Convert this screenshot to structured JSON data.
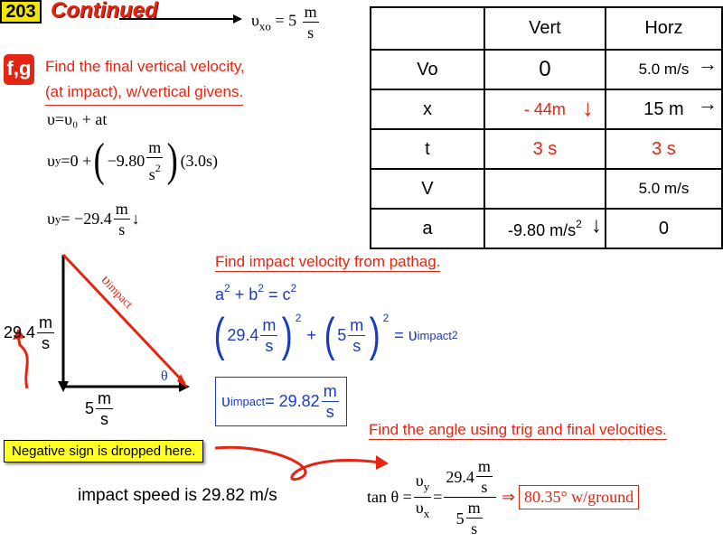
{
  "header": {
    "slide_number": "203",
    "title": "Continued",
    "vxo_symbol": "υ",
    "vxo_sub": "xo",
    "vxo_eq": " = 5",
    "vxo_unit_num": "m",
    "vxo_unit_den": "s"
  },
  "section_badge": "f,g",
  "vertical_task": {
    "line1": "Find the final vertical velocity,",
    "line2": "(at impact), w/vertical givens.",
    "eq1": "υ=υ₀ + at",
    "eq2_left": "υ",
    "eq2_sub": "y",
    "eq2_mid": "=0 +",
    "eq2_coef": "−9.80",
    "eq2_unit_num": "m",
    "eq2_unit_den": "s",
    "eq2_unit_exp": "2",
    "eq2_time": "(3.0s)",
    "eq3_left": "υ",
    "eq3_sub": "y",
    "eq3_eq": " = −29.4",
    "eq3_unit_num": "m",
    "eq3_unit_den": "s",
    "eq3_arrow": "↓"
  },
  "table": {
    "headers": [
      "",
      "Vert",
      "Horz"
    ],
    "rows": [
      {
        "label": "Vo",
        "vert": "0",
        "horz": "5.0 m/s",
        "horz_arrow": "→"
      },
      {
        "label": "x",
        "vert": "- 44m",
        "vert_arrow": "↓",
        "horz": "15 m",
        "horz_arrow": "→"
      },
      {
        "label": "t",
        "vert": "3 s",
        "horz": "3 s"
      },
      {
        "label": "V",
        "vert": "",
        "horz": "5.0 m/s"
      },
      {
        "label": "a",
        "vert": "-9.80 m/s",
        "vert_exp": "2",
        "vert_arrow": "↓",
        "horz": "0"
      }
    ]
  },
  "triangle": {
    "side_value": "29.4",
    "side_unit_num": "m",
    "side_unit_den": "s",
    "base_value": "5",
    "base_unit_num": "m",
    "base_unit_den": "s",
    "hyp_symbol": "υ",
    "hyp_sub": "impact",
    "angle": "θ"
  },
  "pythag": {
    "heading": "Find impact velocity from pathag.",
    "eq1_a": "a",
    "eq1_b": "+ b",
    "eq1_c": "= c",
    "exp": "2",
    "eq2_v1": "29.4",
    "eq2_v2": "5",
    "unit_num": "m",
    "unit_den": "s",
    "eq2_plus": "+",
    "eq2_eq": "= υ",
    "eq2_rhs_sub": "impact",
    "result_left": "υ",
    "result_sub": "impact",
    "result_eq": " = 29.82"
  },
  "angle_task": {
    "heading": "Find the angle using trig and final velocities.",
    "tan": "tan θ =",
    "vy": "υ",
    "vy_sub": "y",
    "vx": "υ",
    "vx_sub": "x",
    "num_value": "29.4",
    "den_value": "5",
    "unit_num": "m",
    "unit_den": "s",
    "implies": "⇒",
    "result": "80.35° w/ground"
  },
  "callout": "Negative sign is dropped here.",
  "impact_speed": "impact speed is 29.82 m/s",
  "colors": {
    "red": "#e32512",
    "blue": "#1a3bc2",
    "badge_yellow": "#f2e600",
    "callout_yellow": "#ffff26"
  }
}
